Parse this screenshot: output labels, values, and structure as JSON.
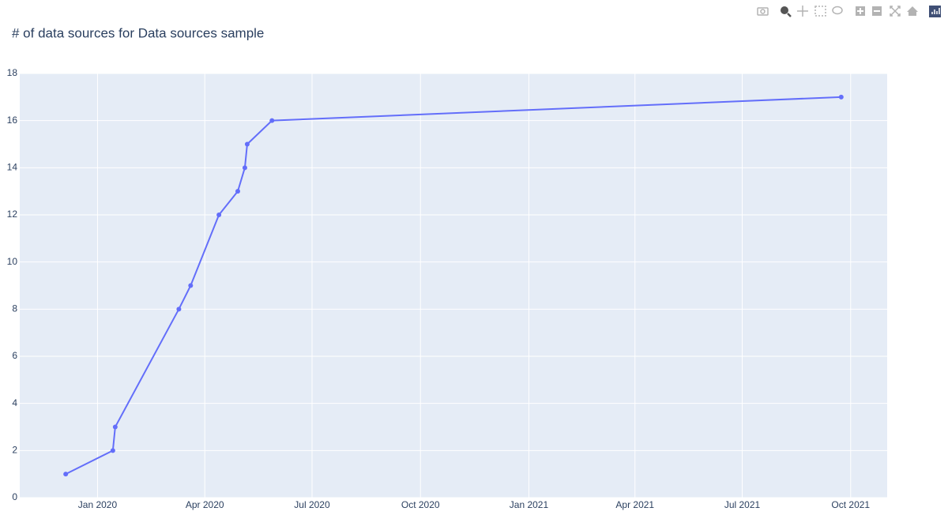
{
  "chart_data": {
    "type": "line",
    "title": "# of data sources for Data sources sample",
    "x": [
      "2019-12-05",
      "2020-01-14",
      "2020-01-16",
      "2020-03-10",
      "2020-03-20",
      "2020-04-13",
      "2020-04-29",
      "2020-05-05",
      "2020-05-07",
      "2020-05-28",
      "2021-09-23"
    ],
    "series": [
      {
        "color": "#636efa",
        "values": [
          1,
          2,
          3,
          8,
          9,
          12,
          13,
          14,
          15,
          16,
          17
        ]
      }
    ],
    "xlim": [
      "2019-10-27",
      "2021-11-01"
    ],
    "xticks": [
      {
        "value": "2020-01-01",
        "label": "Jan 2020"
      },
      {
        "value": "2020-04-01",
        "label": "Apr 2020"
      },
      {
        "value": "2020-07-01",
        "label": "Jul 2020"
      },
      {
        "value": "2020-10-01",
        "label": "Oct 2020"
      },
      {
        "value": "2021-01-01",
        "label": "Jan 2021"
      },
      {
        "value": "2021-04-01",
        "label": "Apr 2021"
      },
      {
        "value": "2021-07-01",
        "label": "Jul 2021"
      },
      {
        "value": "2021-10-01",
        "label": "Oct 2021"
      }
    ],
    "ylim": [
      0,
      18
    ],
    "yticks": [
      0,
      2,
      4,
      6,
      8,
      10,
      12,
      14,
      16,
      18
    ],
    "grid": true,
    "background": "#e5ecf6"
  }
}
